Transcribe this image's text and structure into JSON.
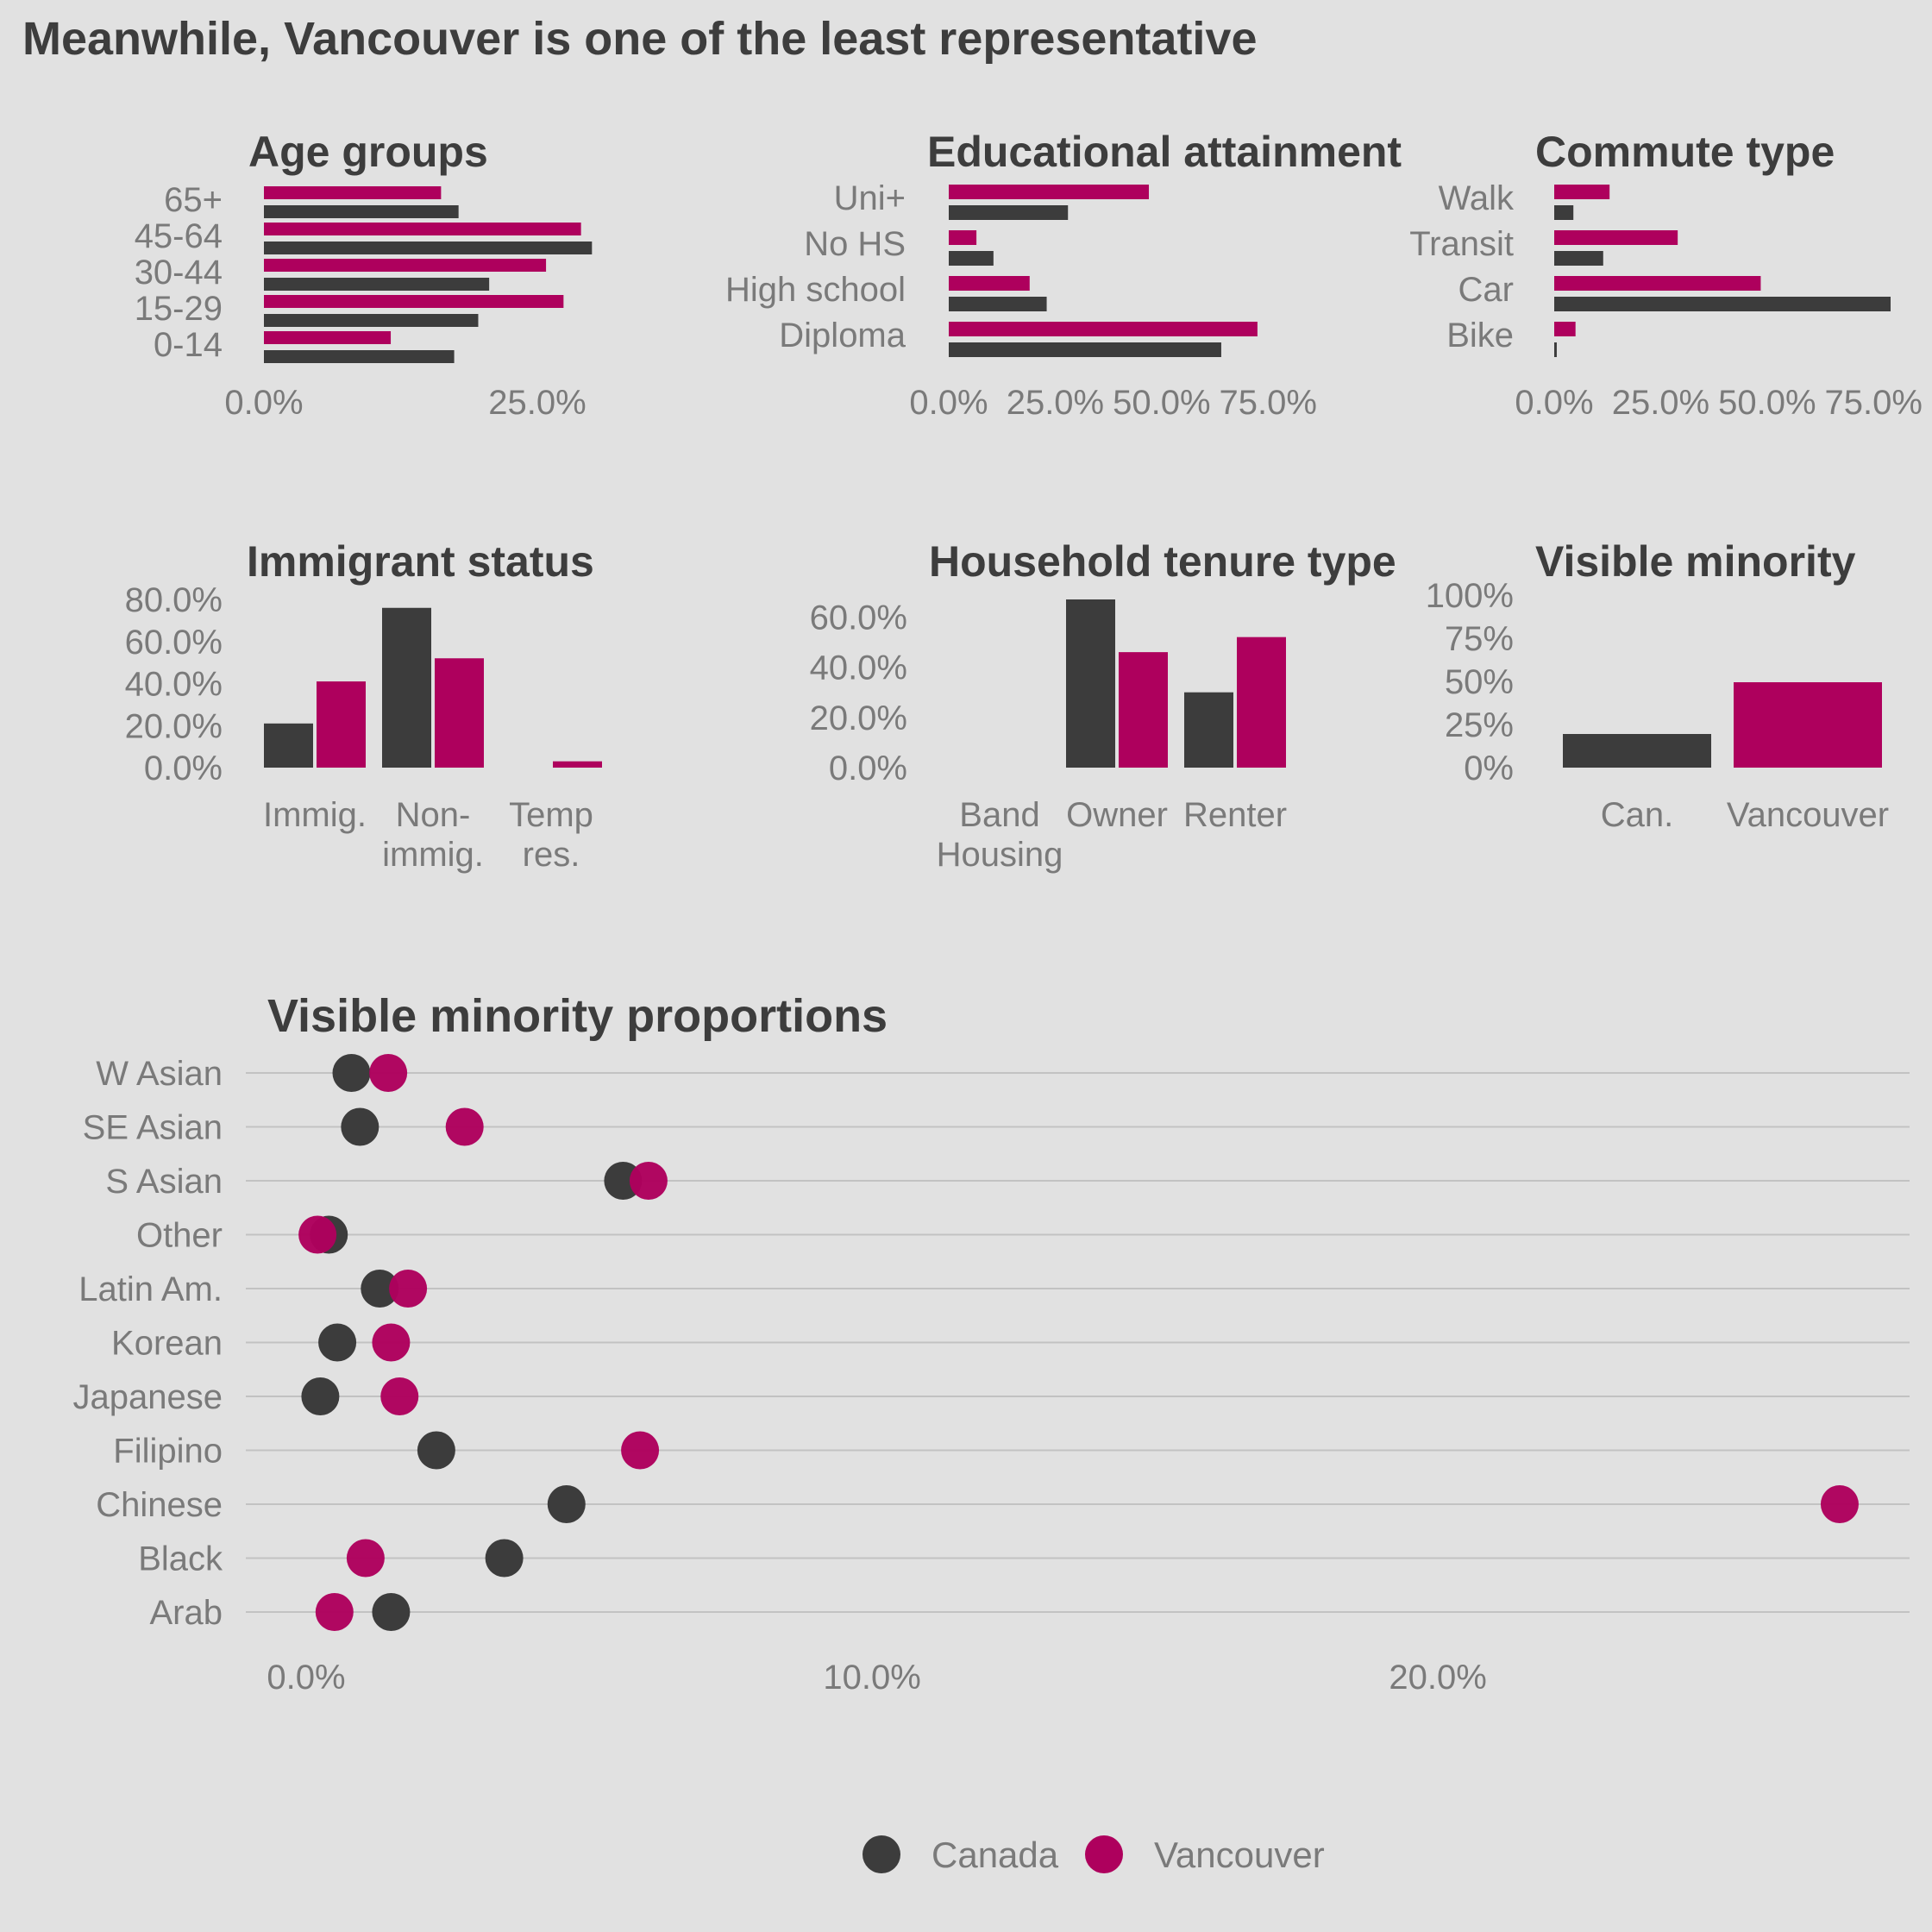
{
  "page_title": "Meanwhile, Vancouver is one of the least representative",
  "colors": {
    "canada": "#3c3c3c",
    "vancouver": "#ae005d",
    "background": "#e1e1e1",
    "grid": "#c2c2c2"
  },
  "legend": {
    "canada_label": "Canada",
    "vancouver_label": "Vancouver",
    "placement": "bottom"
  },
  "chart_data": [
    {
      "id": "age",
      "type": "bar",
      "orientation": "horizontal",
      "title": "Age groups",
      "categories": [
        "65+",
        "45-64",
        "30-44",
        "15-29",
        "0-14"
      ],
      "series": [
        {
          "name": "Vancouver",
          "values": [
            16.2,
            29.0,
            25.8,
            27.4,
            11.6
          ]
        },
        {
          "name": "Canada",
          "values": [
            17.8,
            30.0,
            20.6,
            19.6,
            17.4
          ]
        }
      ],
      "xlim": [
        0,
        31
      ],
      "xticks": [
        0,
        25
      ],
      "xtick_labels": [
        "0.0%",
        "25.0%"
      ]
    },
    {
      "id": "edu",
      "type": "bar",
      "orientation": "horizontal",
      "title": "Educational attainment",
      "categories": [
        "Uni+",
        "No HS",
        "High school",
        "Diploma"
      ],
      "series": [
        {
          "name": "Vancouver",
          "values": [
            47.0,
            6.5,
            19.0,
            72.5
          ]
        },
        {
          "name": "Canada",
          "values": [
            28.0,
            10.5,
            23.0,
            64.0
          ]
        }
      ],
      "xlim": [
        0,
        79
      ],
      "xticks": [
        0,
        25,
        50,
        75
      ],
      "xtick_labels": [
        "0.0%",
        "25.0%",
        "50.0%",
        "75.0%"
      ]
    },
    {
      "id": "commute",
      "type": "bar",
      "orientation": "horizontal",
      "title": "Commute type",
      "categories": [
        "Walk",
        "Transit",
        "Car",
        "Bike"
      ],
      "series": [
        {
          "name": "Vancouver",
          "values": [
            13.0,
            29.0,
            48.5,
            5.0
          ]
        },
        {
          "name": "Canada",
          "values": [
            4.5,
            11.5,
            79.0,
            0.6
          ]
        }
      ],
      "xlim": [
        0,
        79
      ],
      "xticks": [
        0,
        25,
        50,
        75
      ],
      "xtick_labels": [
        "0.0%",
        "25.0%",
        "50.0%",
        "75.0%"
      ]
    },
    {
      "id": "immig",
      "type": "bar",
      "orientation": "vertical",
      "title": "Immigrant status",
      "categories": [
        "Immig.",
        "Non-\nimmig.",
        "Temp\nres."
      ],
      "series": [
        {
          "name": "Canada",
          "values": [
            21.0,
            76.0,
            0.0
          ]
        },
        {
          "name": "Vancouver",
          "values": [
            41.0,
            52.0,
            3.0
          ]
        }
      ],
      "ylim": [
        0,
        80
      ],
      "yticks": [
        0,
        20,
        40,
        60,
        80
      ],
      "ytick_labels": [
        "0.0%",
        "20.0%",
        "40.0%",
        "60.0%",
        "80.0%"
      ]
    },
    {
      "id": "tenure",
      "type": "bar",
      "orientation": "vertical",
      "title": "Household tenure type",
      "categories": [
        "Band\nHousing",
        "Owner",
        "Renter"
      ],
      "series": [
        {
          "name": "Canada",
          "values": [
            0.0,
            67.0,
            30.0
          ]
        },
        {
          "name": "Vancouver",
          "values": [
            0.0,
            46.0,
            52.0
          ]
        }
      ],
      "ylim": [
        0,
        67
      ],
      "yticks": [
        0,
        20,
        40,
        60
      ],
      "ytick_labels": [
        "0.0%",
        "20.0%",
        "40.0%",
        "60.0%"
      ]
    },
    {
      "id": "vismin",
      "type": "bar",
      "orientation": "vertical",
      "title": "Visible minority",
      "categories": [
        "Can.",
        "Vancouver"
      ],
      "series": [
        {
          "name": "Canada",
          "values": [
            19.5,
            0
          ]
        },
        {
          "name": "Vancouver",
          "values": [
            0,
            49.5
          ]
        }
      ],
      "ylim": [
        0,
        100
      ],
      "yticks": [
        0,
        25,
        50,
        75,
        100
      ],
      "ytick_labels": [
        "0%",
        "25%",
        "50%",
        "75%",
        "100%"
      ]
    },
    {
      "id": "props",
      "type": "scatter",
      "title": "Visible minority proportions",
      "categories": [
        "W Asian",
        "SE Asian",
        "S Asian",
        "Other",
        "Latin Am.",
        "Korean",
        "Japanese",
        "Filipino",
        "Chinese",
        "Black",
        "Arab"
      ],
      "series": [
        {
          "name": "Canada",
          "values": [
            0.8,
            0.95,
            5.6,
            0.4,
            1.3,
            0.55,
            0.25,
            2.3,
            4.6,
            3.5,
            1.5
          ]
        },
        {
          "name": "Vancouver",
          "values": [
            1.45,
            2.8,
            6.05,
            0.2,
            1.8,
            1.5,
            1.65,
            5.9,
            27.1,
            1.05,
            0.5
          ]
        }
      ],
      "xlim": [
        0,
        28
      ],
      "xticks": [
        0,
        10,
        20
      ],
      "xtick_labels": [
        "0.0%",
        "10.0%",
        "20.0%"
      ],
      "grid": true
    }
  ]
}
